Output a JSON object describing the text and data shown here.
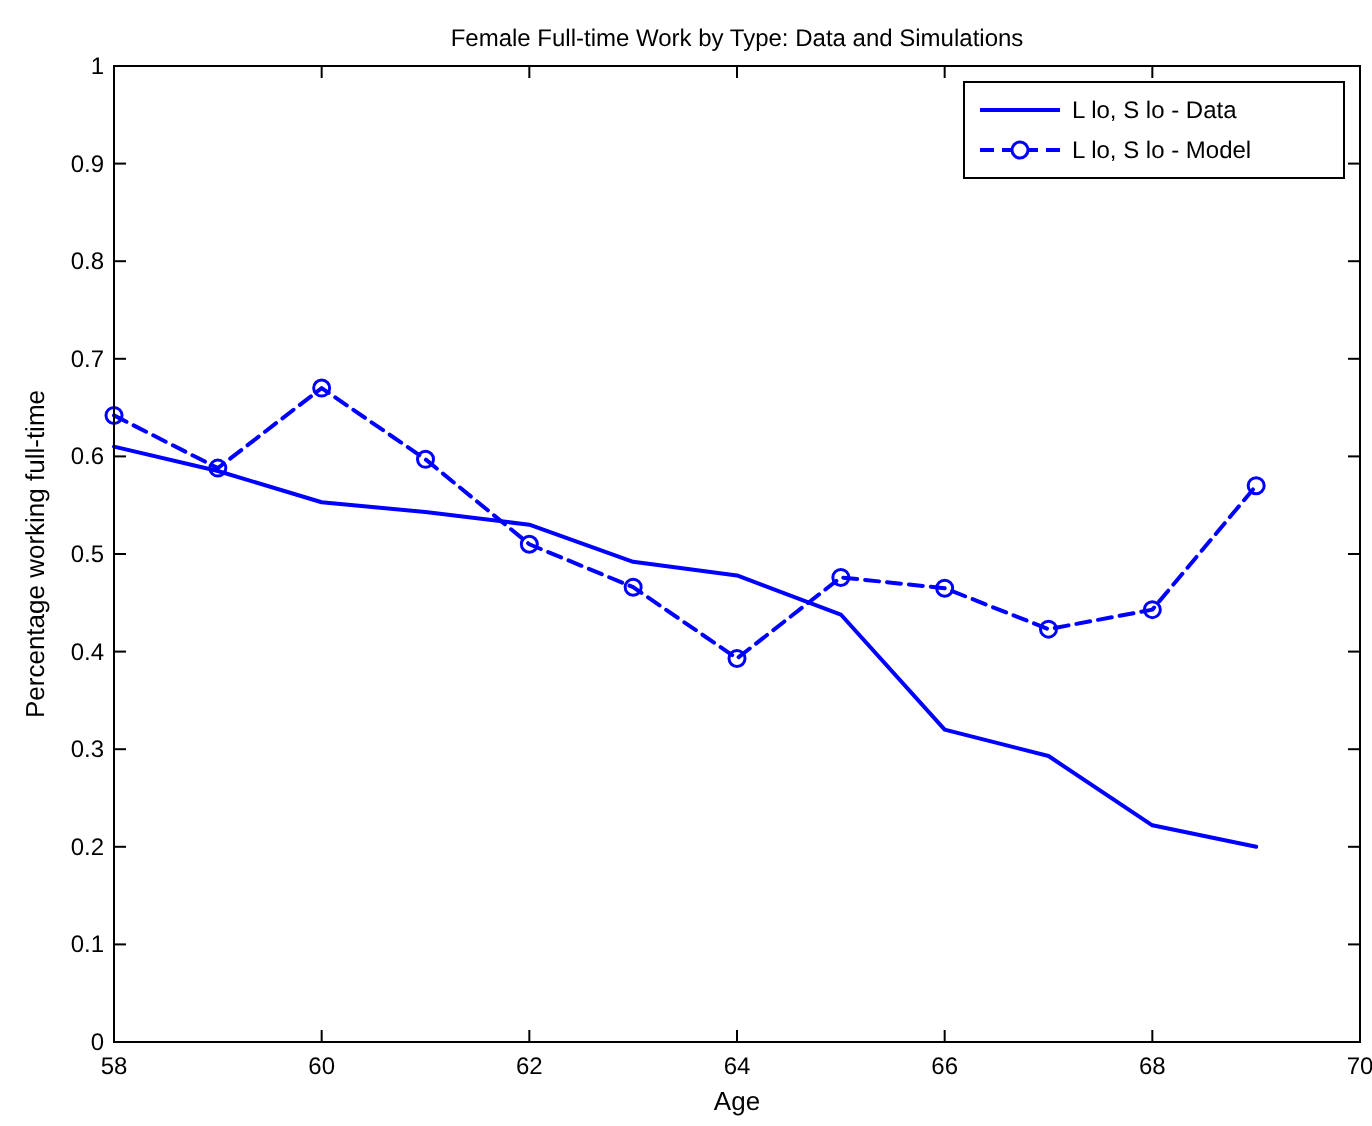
{
  "chart_data": {
    "type": "line",
    "title": "Female Full-time Work by Type: Data and Simulations",
    "xlabel": "Age",
    "ylabel": "Percentage working full-time",
    "x": [
      58,
      59,
      60,
      61,
      62,
      63,
      64,
      65,
      66,
      67,
      68,
      69
    ],
    "series": [
      {
        "name": "L lo, S lo - Data",
        "color": "#0000ff",
        "line_style": "solid",
        "marker": "none",
        "values": [
          0.61,
          0.585,
          0.553,
          0.543,
          0.53,
          0.492,
          0.478,
          0.438,
          0.32,
          0.293,
          0.222,
          0.2
        ]
      },
      {
        "name": "L lo, S lo - Model",
        "color": "#0000ff",
        "line_style": "dashed",
        "marker": "circle",
        "values": [
          0.642,
          0.588,
          0.67,
          0.597,
          0.51,
          0.466,
          0.393,
          0.476,
          0.465,
          0.423,
          0.443,
          0.57
        ]
      }
    ],
    "xlim": [
      58,
      70
    ],
    "xticks": [
      58,
      60,
      62,
      64,
      66,
      68,
      70
    ],
    "ylim": [
      0,
      1
    ],
    "yticks": [
      0,
      0.1,
      0.2,
      0.3,
      0.4,
      0.5,
      0.6,
      0.7,
      0.8,
      0.9,
      1
    ],
    "legend": "top right"
  }
}
